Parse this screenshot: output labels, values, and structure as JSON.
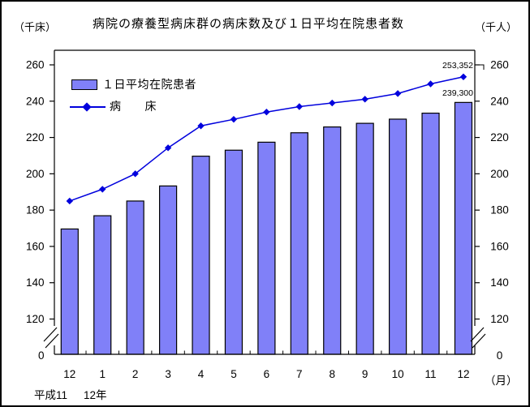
{
  "title": "病院の療養型病床群の病床数及び１日平均在院患者数",
  "units": {
    "left": "（千床）",
    "right": "（千人）"
  },
  "legend": {
    "bar_label": "１日平均在院患者",
    "line_label": "病　　床"
  },
  "footer": {
    "era": "平成11",
    "year": "12年",
    "month_unit": "（月）"
  },
  "colors": {
    "background": "#ffffff",
    "frame": "#000000",
    "text": "#000000",
    "bar_fill": "#8080f8",
    "bar_border": "#000000",
    "line": "#0000dd"
  },
  "chart_data": {
    "type": "combo-bar-line",
    "categories": [
      "12",
      "1",
      "2",
      "3",
      "4",
      "5",
      "6",
      "7",
      "8",
      "9",
      "10",
      "11",
      "12"
    ],
    "x_axis_unit": "（月）",
    "x_axis_period": "平成11（12月）〜平成12（12月）",
    "series": [
      {
        "name": "１日平均在院患者",
        "type": "bar",
        "unit": "千人",
        "color": "#8080f8",
        "values": [
          169.6,
          176.9,
          185.0,
          193.3,
          209.7,
          213.0,
          217.4,
          222.6,
          225.8,
          227.8,
          230.1,
          233.4,
          239.3
        ]
      },
      {
        "name": "病床",
        "type": "line",
        "marker": "diamond",
        "unit": "千床",
        "color": "#0000dd",
        "values": [
          185.0,
          191.5,
          200.0,
          214.3,
          226.4,
          230.0,
          234.0,
          237.0,
          239.0,
          241.1,
          244.2,
          249.5,
          253.4
        ]
      }
    ],
    "annotations": [
      {
        "text": "253,352",
        "target": "line-last-point"
      },
      {
        "text": "239,300",
        "target": "bar-last"
      }
    ],
    "y_ticks": [
      0,
      120,
      140,
      160,
      180,
      200,
      220,
      240,
      260
    ],
    "ylim": [
      0,
      270
    ],
    "axis_break": true,
    "ylabel_left": "（千床）",
    "ylabel_right": "（千人）",
    "grid": false,
    "legend_position": "top-left-inside"
  }
}
